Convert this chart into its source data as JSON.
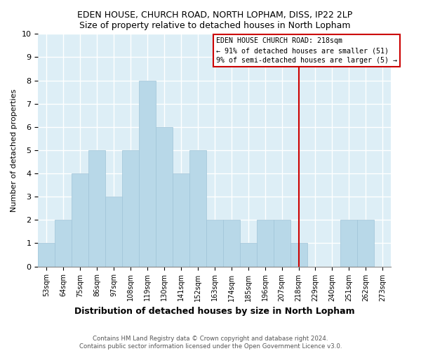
{
  "title": "EDEN HOUSE, CHURCH ROAD, NORTH LOPHAM, DISS, IP22 2LP",
  "subtitle": "Size of property relative to detached houses in North Lopham",
  "xlabel": "Distribution of detached houses by size in North Lopham",
  "ylabel": "Number of detached properties",
  "footer_line1": "Contains HM Land Registry data © Crown copyright and database right 2024.",
  "footer_line2": "Contains public sector information licensed under the Open Government Licence v3.0.",
  "bin_labels": [
    "53sqm",
    "64sqm",
    "75sqm",
    "86sqm",
    "97sqm",
    "108sqm",
    "119sqm",
    "130sqm",
    "141sqm",
    "152sqm",
    "163sqm",
    "174sqm",
    "185sqm",
    "196sqm",
    "207sqm",
    "218sqm",
    "229sqm",
    "240sqm",
    "251sqm",
    "262sqm",
    "273sqm"
  ],
  "bar_heights": [
    1,
    2,
    4,
    5,
    3,
    5,
    8,
    6,
    4,
    5,
    2,
    2,
    1,
    2,
    2,
    1,
    0,
    0,
    2,
    2,
    0
  ],
  "bar_color": "#b8d8e8",
  "bar_edge_color": "#a0c4d8",
  "plot_bg_color": "#ddeef6",
  "grid_color": "#ffffff",
  "ref_line_color": "#cc0000",
  "annotation_title": "EDEN HOUSE CHURCH ROAD: 218sqm",
  "annotation_line1": "← 91% of detached houses are smaller (51)",
  "annotation_line2": "9% of semi-detached houses are larger (5) →",
  "annotation_box_color": "#ffffff",
  "annotation_border_color": "#cc0000",
  "ylim": [
    0,
    10
  ],
  "yticks": [
    0,
    1,
    2,
    3,
    4,
    5,
    6,
    7,
    8,
    9,
    10
  ]
}
